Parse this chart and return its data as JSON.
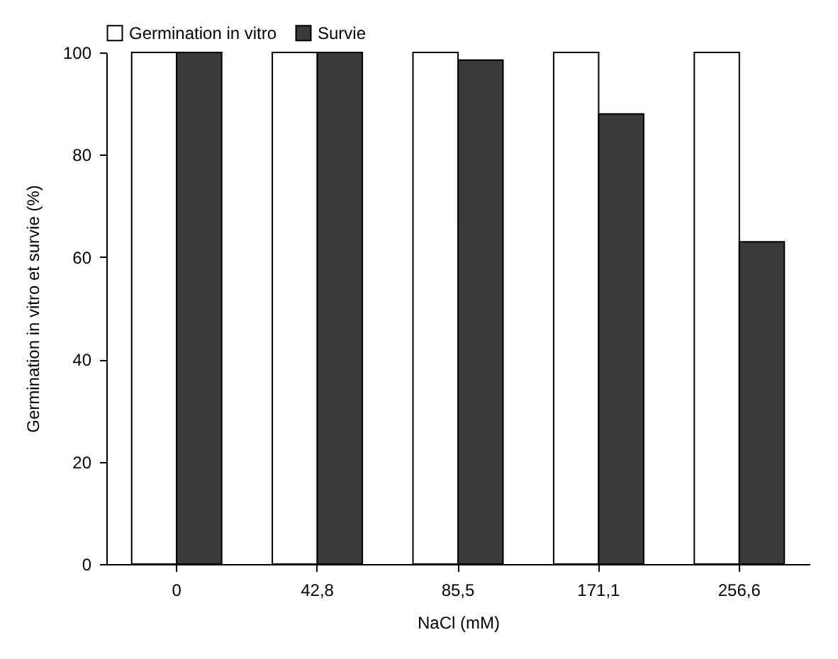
{
  "chart_data": {
    "type": "bar",
    "xlabel": "NaCl (mM)",
    "ylabel": "Germination in vitro et survie (%)",
    "categories": [
      "0",
      "42,8",
      "85,5",
      "171,1",
      "256,6"
    ],
    "series": [
      {
        "name": "Germination in vitro",
        "color": "#ffffff",
        "values": [
          100,
          100,
          100,
          100,
          100
        ]
      },
      {
        "name": "Survie",
        "color": "#3a3a3a",
        "values": [
          100,
          100,
          98.5,
          88,
          63
        ]
      }
    ],
    "ylim": [
      0,
      100
    ],
    "yticks": [
      0,
      20,
      40,
      60,
      80,
      100
    ],
    "grid": false,
    "legend": "top"
  }
}
